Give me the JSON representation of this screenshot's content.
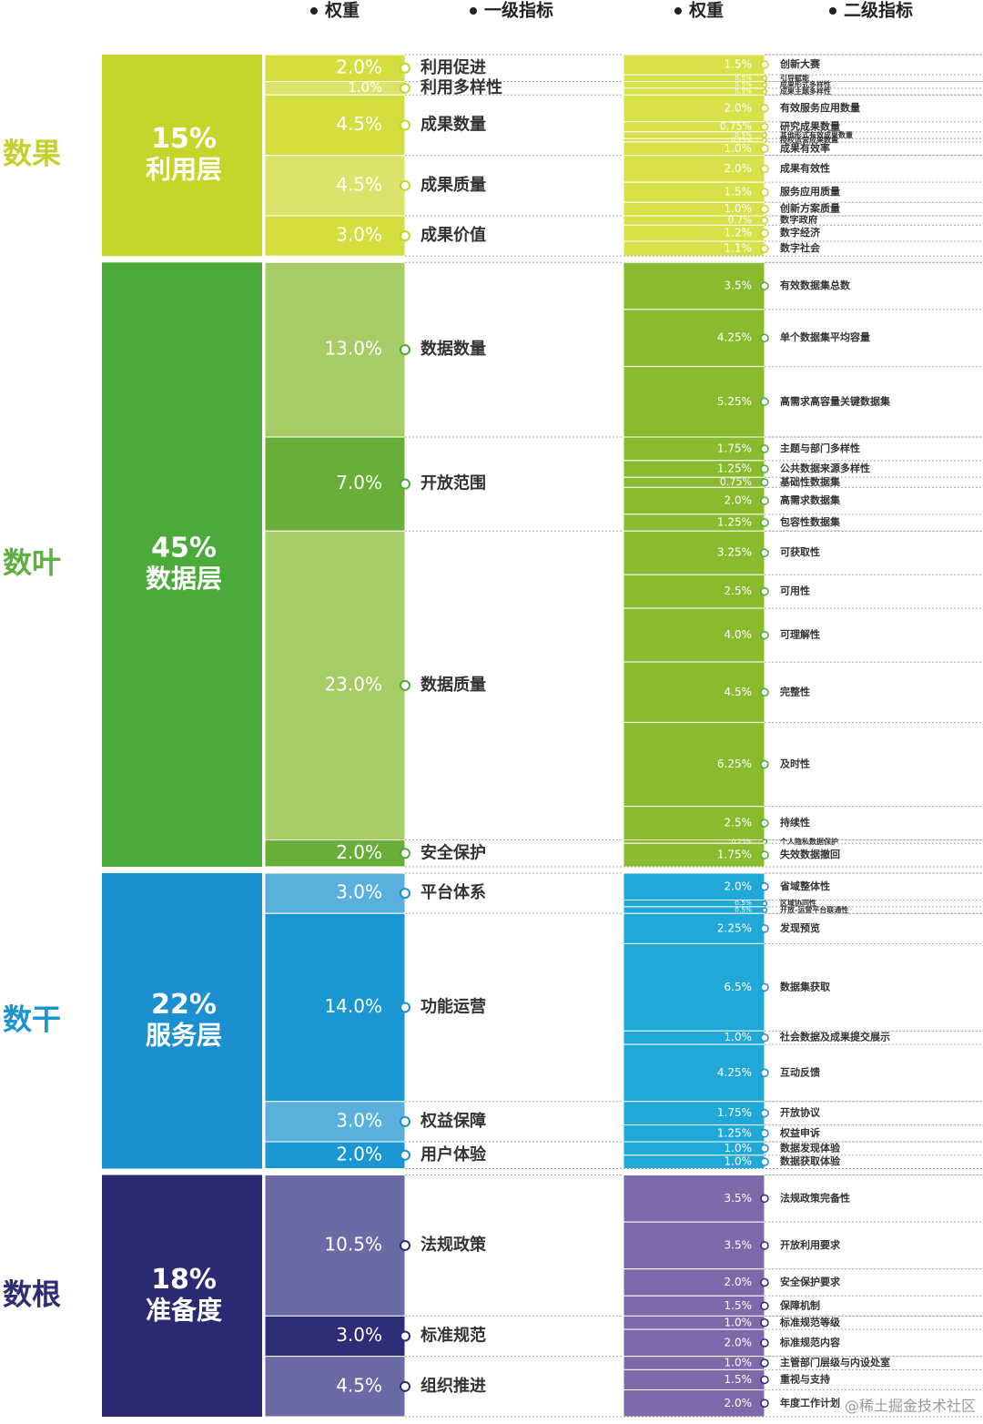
{
  "header": {
    "columns": [
      "权重",
      "一级指标",
      "权重",
      "二级指标"
    ]
  },
  "layers": [
    {
      "side_name": "数果",
      "weight": 15,
      "weight_label": "15%",
      "name": "利用层",
      "colors": {
        "side": "#c3d12a",
        "layer": "#c5d52b",
        "level1": [
          "#d4de3f",
          "#dde36a"
        ],
        "level2": "#d8e14a"
      },
      "items": [
        {
          "name": "利用促进",
          "weight": 2,
          "weight_label": "2.0%",
          "children": [
            {
              "name": "创新大赛",
              "weight": 1.5,
              "weight_label": "1.5%"
            },
            {
              "name": "引导赋能",
              "weight": 0.5,
              "weight_label": "0.5%"
            }
          ]
        },
        {
          "name": "利用多样性",
          "weight": 1,
          "weight_label": "1.0%",
          "children": [
            {
              "name": "成果形式多样性",
              "weight": 0.5,
              "weight_label": "0.5%"
            },
            {
              "name": "成果主题多样性",
              "weight": 0.5,
              "weight_label": "0.5%"
            }
          ]
        },
        {
          "name": "成果数量",
          "weight": 4.5,
          "weight_label": "4.5%",
          "children": [
            {
              "name": "有效服务应用数量",
              "weight": 2,
              "weight_label": "2.0%"
            },
            {
              "name": "研究成果数量",
              "weight": 0.75,
              "weight_label": "0.75%"
            },
            {
              "name": "其他形式有效成果数量",
              "weight": 0.5,
              "weight_label": "0.5%"
            },
            {
              "name": "授权运营成果数量",
              "weight": 0.25,
              "weight_label": "0.25%"
            },
            {
              "name": "成果有效率",
              "weight": 1,
              "weight_label": "1.0%"
            }
          ]
        },
        {
          "name": "成果质量",
          "weight": 4.5,
          "weight_label": "4.5%",
          "children": [
            {
              "name": "成果有效性",
              "weight": 2,
              "weight_label": "2.0%"
            },
            {
              "name": "服务应用质量",
              "weight": 1.5,
              "weight_label": "1.5%"
            },
            {
              "name": "创新方案质量",
              "weight": 1,
              "weight_label": "1.0%"
            }
          ]
        },
        {
          "name": "成果价值",
          "weight": 3,
          "weight_label": "3.0%",
          "children": [
            {
              "name": "数字政府",
              "weight": 0.7,
              "weight_label": "0.7%"
            },
            {
              "name": "数字经济",
              "weight": 1.2,
              "weight_label": "1.2%"
            },
            {
              "name": "数字社会",
              "weight": 1.1,
              "weight_label": "1.1%"
            }
          ]
        }
      ]
    },
    {
      "side_name": "数叶",
      "weight": 45,
      "weight_label": "45%",
      "name": "数据层",
      "colors": {
        "side": "#5daf3f",
        "layer": "#4caa3a",
        "level1": [
          "#a7cc66",
          "#6aae3a"
        ],
        "level2": "#8aba2e"
      },
      "items": [
        {
          "name": "数据数量",
          "weight": 13,
          "weight_label": "13.0%",
          "children": [
            {
              "name": "有效数据集总数",
              "weight": 3.5,
              "weight_label": "3.5%"
            },
            {
              "name": "单个数据集平均容量",
              "weight": 4.25,
              "weight_label": "4.25%"
            },
            {
              "name": "高需求高容量关键数据集",
              "weight": 5.25,
              "weight_label": "5.25%"
            }
          ]
        },
        {
          "name": "开放范围",
          "weight": 7,
          "weight_label": "7.0%",
          "children": [
            {
              "name": "主题与部门多样性",
              "weight": 1.75,
              "weight_label": "1.75%"
            },
            {
              "name": "公共数据来源多样性",
              "weight": 1.25,
              "weight_label": "1.25%"
            },
            {
              "name": "基础性数据集",
              "weight": 0.75,
              "weight_label": "0.75%"
            },
            {
              "name": "高需求数据集",
              "weight": 2,
              "weight_label": "2.0%"
            },
            {
              "name": "包容性数据集",
              "weight": 1.25,
              "weight_label": "1.25%"
            }
          ]
        },
        {
          "name": "数据质量",
          "weight": 23,
          "weight_label": "23.0%",
          "children": [
            {
              "name": "可获取性",
              "weight": 3.25,
              "weight_label": "3.25%"
            },
            {
              "name": "可用性",
              "weight": 2.5,
              "weight_label": "2.5%"
            },
            {
              "name": "可理解性",
              "weight": 4,
              "weight_label": "4.0%"
            },
            {
              "name": "完整性",
              "weight": 4.5,
              "weight_label": "4.5%"
            },
            {
              "name": "及时性",
              "weight": 6.25,
              "weight_label": "6.25%"
            },
            {
              "name": "持续性",
              "weight": 2.5,
              "weight_label": "2.5%"
            }
          ]
        },
        {
          "name": "安全保护",
          "weight": 2,
          "weight_label": "2.0%",
          "children": [
            {
              "name": "个人隐私数据保护",
              "weight": 0.25,
              "weight_label": "0.25%"
            },
            {
              "name": "失效数据撤回",
              "weight": 1.75,
              "weight_label": "1.75%"
            }
          ]
        }
      ]
    },
    {
      "side_name": "数干",
      "weight": 22,
      "weight_label": "22%",
      "name": "服务层",
      "colors": {
        "side": "#1b95d2",
        "layer": "#1b8fd0",
        "level1": [
          "#5ab0dd",
          "#1a96d3"
        ],
        "level2": "#20a8d8"
      },
      "items": [
        {
          "name": "平台体系",
          "weight": 3,
          "weight_label": "3.0%",
          "children": [
            {
              "name": "省域整体性",
              "weight": 2,
              "weight_label": "2.0%"
            },
            {
              "name": "区域协同性",
              "weight": 0.5,
              "weight_label": "0.5%"
            },
            {
              "name": "开放-运营平台联通性",
              "weight": 0.5,
              "weight_label": "0.5%"
            }
          ]
        },
        {
          "name": "功能运营",
          "weight": 14,
          "weight_label": "14.0%",
          "children": [
            {
              "name": "发现预览",
              "weight": 2.25,
              "weight_label": "2.25%"
            },
            {
              "name": "数据集获取",
              "weight": 6.5,
              "weight_label": "6.5%"
            },
            {
              "name": "社会数据及成果提交展示",
              "weight": 1,
              "weight_label": "1.0%"
            },
            {
              "name": "互动反馈",
              "weight": 4.25,
              "weight_label": "4.25%"
            }
          ]
        },
        {
          "name": "权益保障",
          "weight": 3,
          "weight_label": "3.0%",
          "children": [
            {
              "name": "开放协议",
              "weight": 1.75,
              "weight_label": "1.75%"
            },
            {
              "name": "权益申诉",
              "weight": 1.25,
              "weight_label": "1.25%"
            }
          ]
        },
        {
          "name": "用户体验",
          "weight": 2,
          "weight_label": "2.0%",
          "children": [
            {
              "name": "数据发现体验",
              "weight": 1,
              "weight_label": "1.0%"
            },
            {
              "name": "数据获取体验",
              "weight": 1,
              "weight_label": "1.0%"
            }
          ]
        }
      ]
    },
    {
      "side_name": "数根",
      "weight": 18,
      "weight_label": "18%",
      "name": "准备度",
      "colors": {
        "side": "#2d2d78",
        "layer": "#2a2a72",
        "level1": [
          "#6a6aa6",
          "#2d2d78"
        ],
        "level2": "#7e6aaa"
      },
      "items": [
        {
          "name": "法规政策",
          "weight": 10.5,
          "weight_label": "10.5%",
          "children": [
            {
              "name": "法规政策完备性",
              "weight": 3.5,
              "weight_label": "3.5%"
            },
            {
              "name": "开放利用要求",
              "weight": 3.5,
              "weight_label": "3.5%"
            },
            {
              "name": "安全保护要求",
              "weight": 2,
              "weight_label": "2.0%"
            },
            {
              "name": "保障机制",
              "weight": 1.5,
              "weight_label": "1.5%"
            }
          ]
        },
        {
          "name": "标准规范",
          "weight": 3,
          "weight_label": "3.0%",
          "children": [
            {
              "name": "标准规范等级",
              "weight": 1,
              "weight_label": "1.0%"
            },
            {
              "name": "标准规范内容",
              "weight": 2,
              "weight_label": "2.0%"
            }
          ]
        },
        {
          "name": "组织推进",
          "weight": 4.5,
          "weight_label": "4.5%",
          "children": [
            {
              "name": "主管部门层级与内设处室",
              "weight": 1,
              "weight_label": "1.0%"
            },
            {
              "name": "重视与支持",
              "weight": 1.5,
              "weight_label": "1.5%"
            },
            {
              "name": "年度工作计划",
              "weight": 2,
              "weight_label": "2.0%"
            }
          ]
        }
      ]
    }
  ],
  "watermark": "@稀土掘金技术社区"
}
